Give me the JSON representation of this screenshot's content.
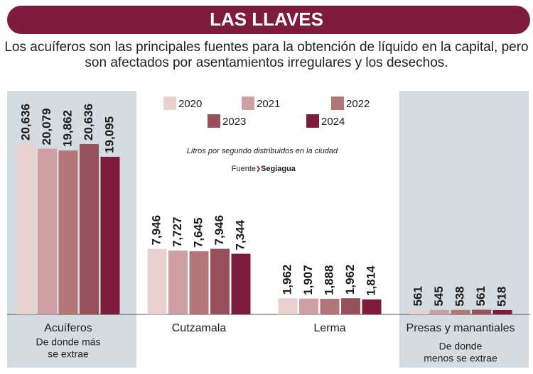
{
  "chart_data": {
    "type": "bar",
    "title": "LAS LLAVES",
    "subtitle": [
      "Los acuíferos son las principales fuentes para la obtención de líquido en la capital, pero",
      "son afectados por asentamientos irregulares y los desechos."
    ],
    "note": "Litros por segundo distribuidos en la ciudad",
    "source_label": "Fuente",
    "source": "Segiagua",
    "categories": [
      "Acuíferos",
      "Cutzamala",
      "Lerma",
      "Presas y manantiales"
    ],
    "category_notes": [
      [
        "De donde más",
        "se extrae"
      ],
      null,
      null,
      [
        "De donde",
        "menos se extrae"
      ]
    ],
    "highlight": [
      0,
      3
    ],
    "series": [
      {
        "name": "2020",
        "color": "#e9d1d2",
        "values": [
          20636,
          7946,
          1962,
          561
        ],
        "value_labels": [
          "20,636",
          "7,946",
          "1,962",
          "561"
        ]
      },
      {
        "name": "2021",
        "color": "#cfa0a3",
        "values": [
          20079,
          7727,
          1907,
          545
        ],
        "value_labels": [
          "20,079",
          "7,727",
          "1,907",
          "545"
        ]
      },
      {
        "name": "2022",
        "color": "#b47579",
        "values": [
          19862,
          7645,
          1888,
          538
        ],
        "value_labels": [
          "19,862",
          "7,645",
          "1,888",
          "538"
        ]
      },
      {
        "name": "2023",
        "color": "#98515b",
        "values": [
          20636,
          7946,
          1962,
          561
        ],
        "value_labels": [
          "20,636",
          "7,946",
          "1,962",
          "561"
        ]
      },
      {
        "name": "2024",
        "color": "#7d1c3c",
        "values": [
          19095,
          7344,
          1814,
          518
        ],
        "value_labels": [
          "19,095",
          "7,344",
          "1,814",
          "518"
        ]
      }
    ]
  }
}
